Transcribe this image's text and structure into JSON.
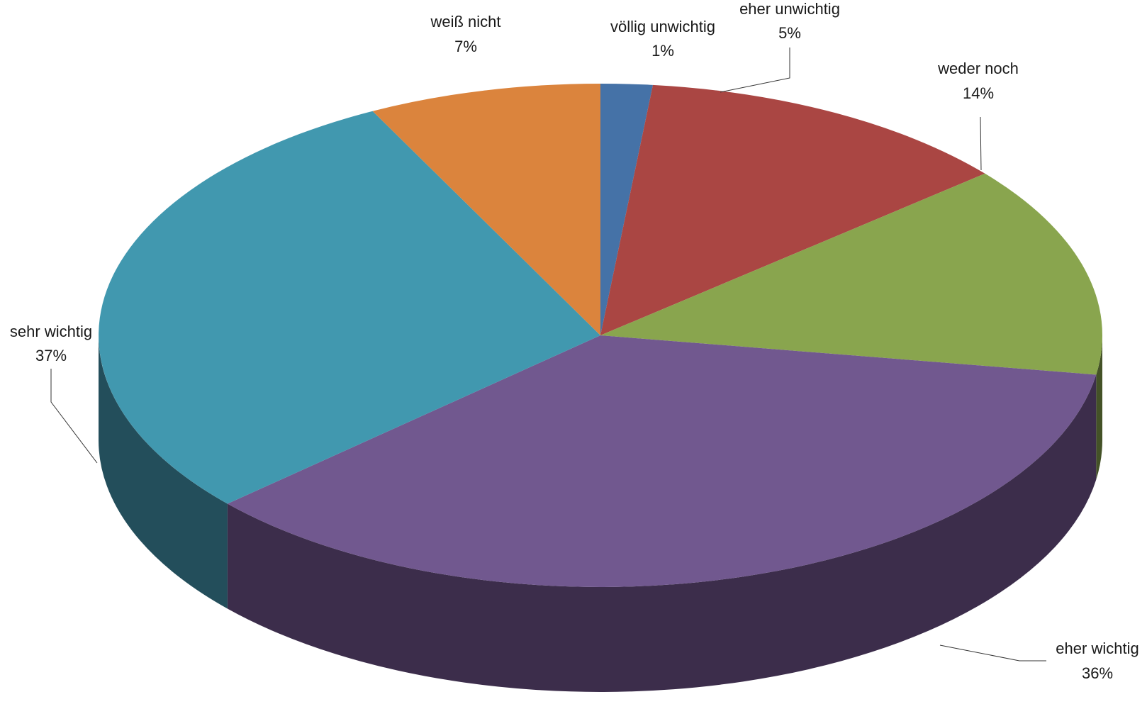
{
  "chart_data": {
    "type": "pie",
    "style": "3d",
    "slices": [
      {
        "label": "völlig unwichtig",
        "value": 1,
        "value_label": "1%",
        "color": "#4572A7",
        "side_color": "#23395A"
      },
      {
        "label": "eher unwichtig",
        "value": 5,
        "value_label": "5%",
        "color": "#AA4643",
        "side_color": "#552322"
      },
      {
        "label": "weder noch",
        "value": 14,
        "value_label": "14%",
        "color": "#89A54E",
        "side_color": "#445227"
      },
      {
        "label": "eher wichtig",
        "value": 36,
        "value_label": "36%",
        "color": "#71588F",
        "side_color": "#3C2D4B"
      },
      {
        "label": "sehr wichtig",
        "value": 37,
        "value_label": "37%",
        "color": "#4198AF",
        "side_color": "#234E5B"
      },
      {
        "label": "weiß nicht",
        "value": 7,
        "value_label": "7%",
        "color": "#DB843D",
        "side_color": "#6E421F"
      }
    ],
    "angles_deg": [
      0,
      6,
      50,
      99,
      228,
      333,
      360
    ],
    "legend": "none"
  }
}
